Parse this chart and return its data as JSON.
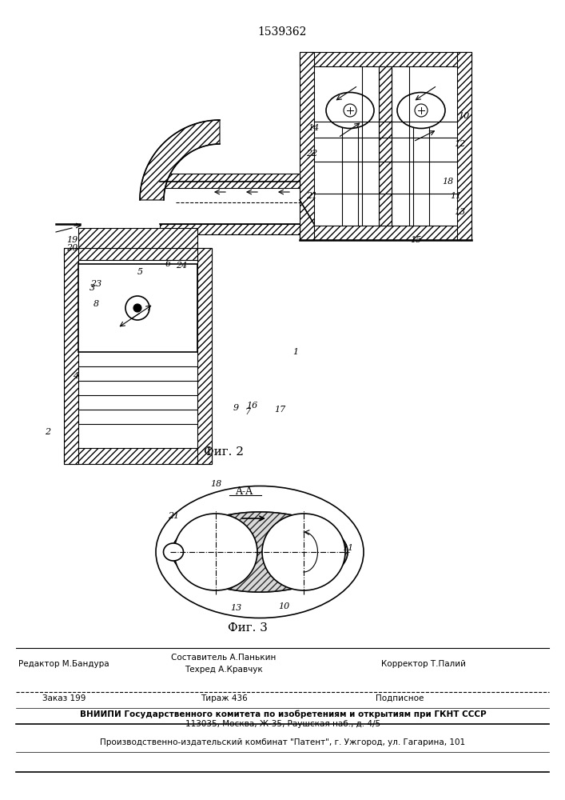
{
  "patent_number": "1539362",
  "fig2_label": "Фиг. 2",
  "fig3_label": "Фиг. 3",
  "section_label": "A-A",
  "bg_color": "#ffffff",
  "line_color": "#000000",
  "hatch_color": "#000000",
  "footer_lines": [
    "Составитель А.Панькин",
    "Техред А.Кравчук",
    "Корректор Т.Палий",
    "Редактор М.Бандура",
    "Заказ 199",
    "Тираж 436",
    "Подписное",
    "ВНИИПИ Государственного комитета по изобретениям и открытиям при ГКНТ СССР",
    "113035, Москва, Ж-35, Раушская наб., д. 4/5",
    "Производственно-издательский комбинат \"Патент\", г. Ужгород, ул. Гагарина, 101"
  ]
}
